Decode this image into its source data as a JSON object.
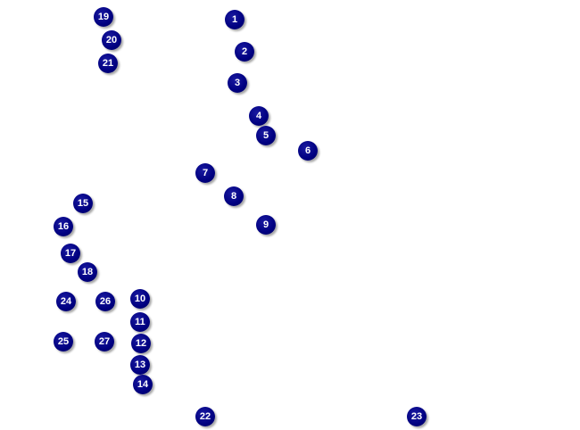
{
  "map": {
    "marker_color": "#000080",
    "marker_text_color": "#ffffff",
    "markers": [
      "1",
      "2",
      "3",
      "4",
      "5",
      "6",
      "7",
      "8",
      "9",
      "10",
      "11",
      "12",
      "13",
      "14",
      "15",
      "16",
      "17",
      "18",
      "19",
      "20",
      "21",
      "22",
      "23",
      "24",
      "25",
      "26",
      "27"
    ]
  }
}
